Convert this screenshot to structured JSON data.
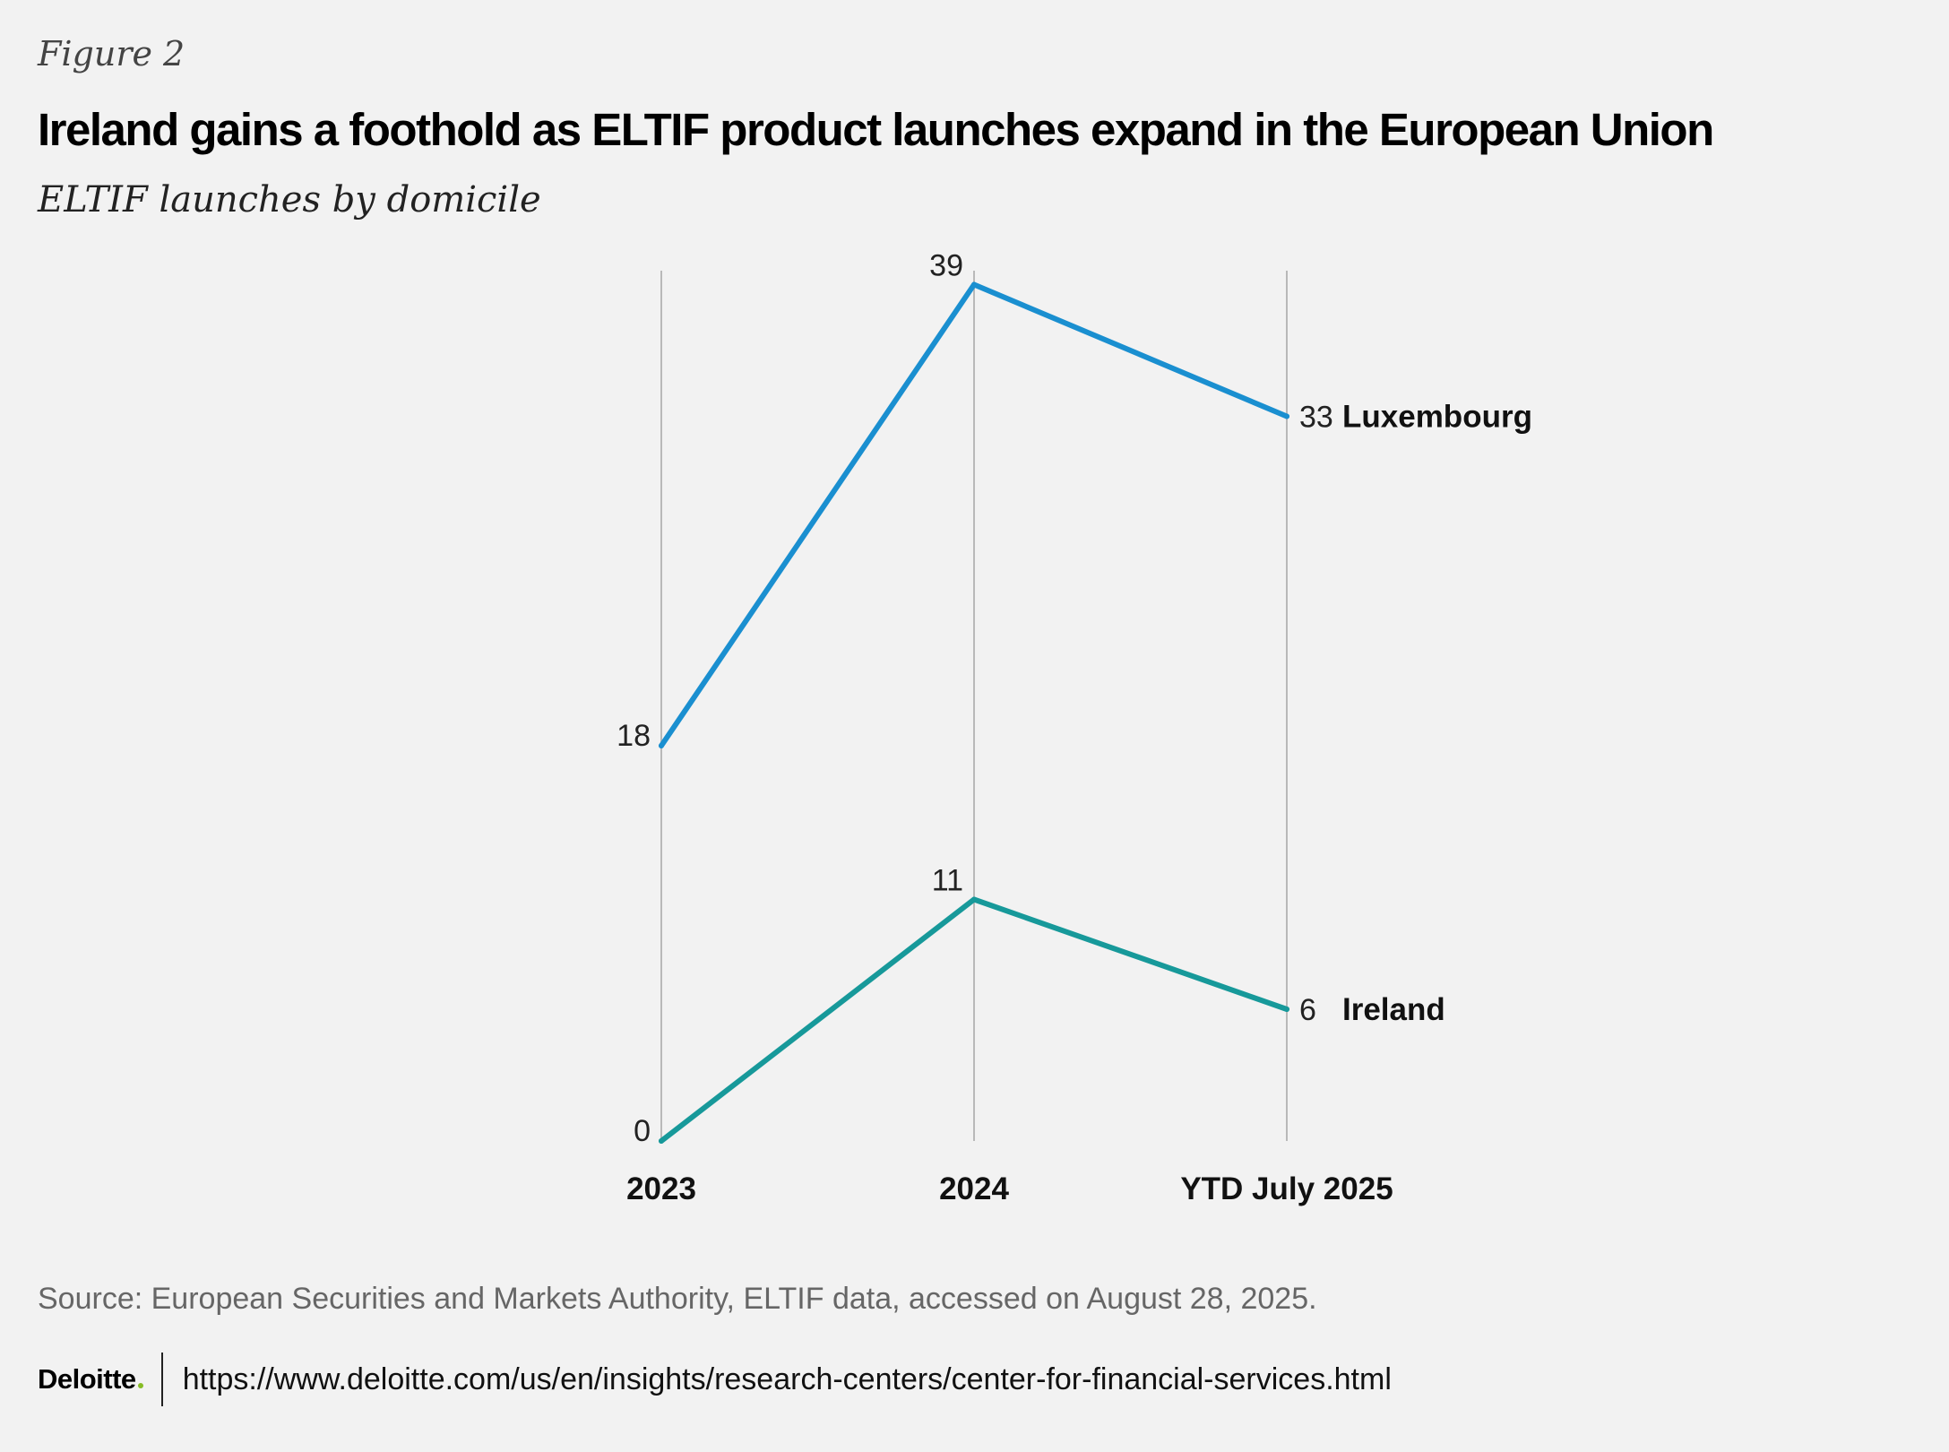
{
  "figure_label": "Figure 2",
  "title": "Ireland gains a foothold as ELTIF product launches expand in the European Union",
  "subtitle": "ELTIF launches by domicile",
  "source": "Source: European Securities and Markets Authority, ELTIF data, accessed on August 28, 2025.",
  "footer": {
    "logo_text": "Deloitte",
    "url": "https://www.deloitte.com/us/en/insights/research-centers/center-for-financial-services.html"
  },
  "colors": {
    "luxembourg": "#1a8fd0",
    "ireland": "#17999a",
    "gridline": "#b9b9b9",
    "logo_dot": "#86bc25"
  },
  "chart_data": {
    "type": "line",
    "categories": [
      "2023",
      "2024",
      "YTD July 2025"
    ],
    "series": [
      {
        "name": "Luxembourg",
        "values": [
          18,
          39,
          33
        ],
        "color": "#1a8fd0"
      },
      {
        "name": "Ireland",
        "values": [
          0,
          11,
          6
        ],
        "color": "#17999a"
      }
    ],
    "ylim": [
      0,
      41
    ],
    "grid": "vertical lines at each category",
    "legend": "end-of-line labels"
  }
}
